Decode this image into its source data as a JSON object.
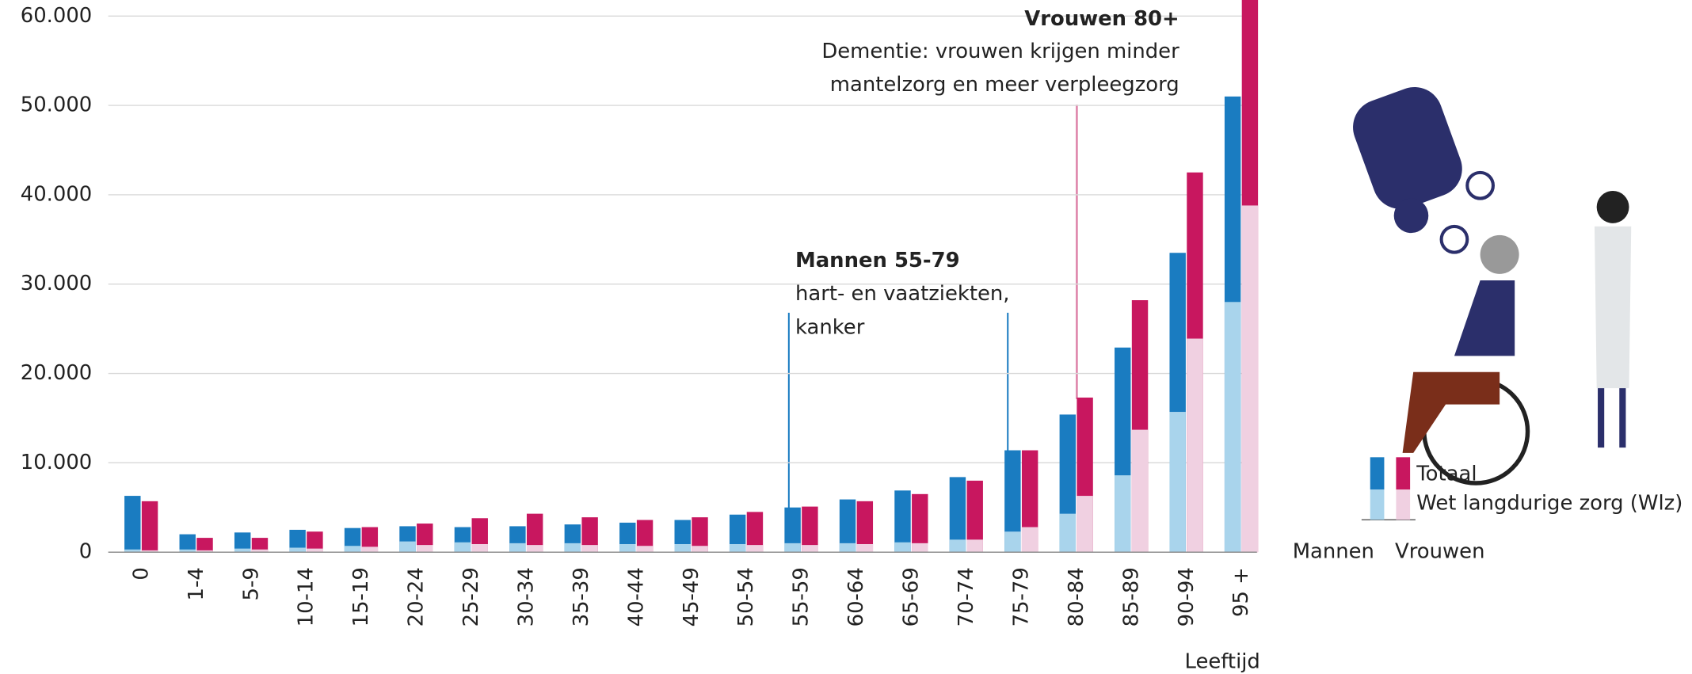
{
  "chart_data": {
    "type": "bar",
    "categories": [
      "0",
      "1-4",
      "5-9",
      "10-14",
      "15-19",
      "20-24",
      "25-29",
      "30-34",
      "35-39",
      "40-44",
      "45-49",
      "50-54",
      "55-59",
      "60-64",
      "65-69",
      "70-74",
      "75-79",
      "80-84",
      "85-89",
      "90-94",
      "95 +"
    ],
    "series": [
      {
        "name": "Mannen",
        "color": "#1a7cc1",
        "wlz_color": "#a9d4ec",
        "values": [
          6300,
          2000,
          2200,
          2500,
          2700,
          2900,
          2800,
          2900,
          3100,
          3300,
          3600,
          4200,
          5000,
          5900,
          6900,
          8400,
          11400,
          15400,
          22900,
          33500,
          51000
        ],
        "wlz": [
          300,
          300,
          400,
          500,
          700,
          1200,
          1100,
          1000,
          1000,
          900,
          900,
          900,
          1000,
          1000,
          1100,
          1400,
          2300,
          4300,
          8600,
          15700,
          28000
        ]
      },
      {
        "name": "Vrouwen",
        "color": "#c8175f",
        "wlz_color": "#f0d0e1",
        "values": [
          5700,
          1600,
          1600,
          2300,
          2800,
          3200,
          3800,
          4300,
          3900,
          3600,
          3900,
          4500,
          5100,
          5700,
          6500,
          8000,
          11400,
          17300,
          28200,
          42500,
          64000
        ],
        "wlz": [
          200,
          200,
          300,
          400,
          600,
          800,
          900,
          800,
          800,
          700,
          700,
          800,
          800,
          900,
          1000,
          1400,
          2800,
          6300,
          13700,
          23900,
          38800
        ]
      }
    ],
    "legend": [
      "Totaal",
      "Wet langdurige zorg (Wlz)"
    ],
    "xlabel": "Leeftijd",
    "ylim": [
      0,
      61800
    ],
    "yticks": [
      0,
      {
        "value": 10000,
        "label": "10.000"
      },
      {
        "value": 20000,
        "label": "20.000"
      },
      {
        "value": 30000,
        "label": "30.000"
      },
      {
        "value": 40000,
        "label": "40.000"
      },
      {
        "value": 50000,
        "label": "50.000"
      },
      {
        "value": 60000,
        "label": "60.000"
      }
    ],
    "grid": true,
    "annotations": [
      {
        "title": "Vrouwen 80+",
        "lines": [
          "Dementie: vrouwen krijgen minder",
          "mantelzorg en meer verpleegzorg"
        ]
      },
      {
        "title": "Mannen 55-79",
        "lines": [
          "hart- en vaatziekten,",
          "kanker"
        ]
      }
    ]
  }
}
